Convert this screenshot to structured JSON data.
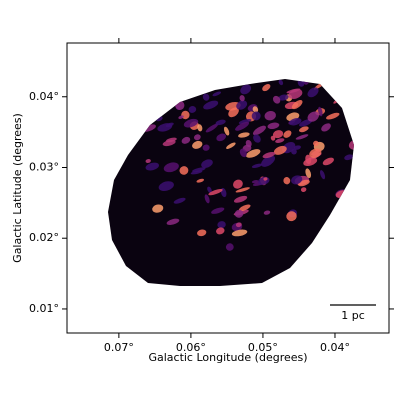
{
  "chart_data": {
    "type": "image",
    "xlabel": "Galactic Longitude (degrees)",
    "ylabel": "Galactic Latitude (degrees)",
    "xlim": [
      0.0772,
      0.0325
    ],
    "ylim": [
      0.0066,
      0.0476
    ],
    "xticks": [
      {
        "value": 0.07,
        "label": "0.07°"
      },
      {
        "value": 0.06,
        "label": "0.06°"
      },
      {
        "value": 0.05,
        "label": "0.05°"
      },
      {
        "value": 0.04,
        "label": "0.04°"
      }
    ],
    "yticks": [
      {
        "value": 0.01,
        "label": "0.01°"
      },
      {
        "value": 0.02,
        "label": "0.02°"
      },
      {
        "value": 0.03,
        "label": "0.03°"
      },
      {
        "value": 0.04,
        "label": "0.04°"
      }
    ],
    "scalebar_label": "1 pc"
  }
}
